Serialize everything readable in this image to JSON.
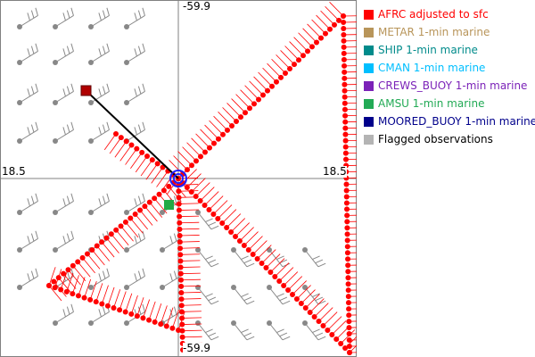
{
  "map": {
    "lat_top_label": "-59.9",
    "lat_bottom_label": "-59.9",
    "lon_left_label": "18.5",
    "lon_right_label": "18.5",
    "colors": {
      "afrc": "#ff0000",
      "barb": "#888888",
      "track_line": "#000000",
      "metar_marker": "#b00000",
      "amsu_marker": "#22aa44",
      "center_ring": "#2020ff"
    }
  },
  "legend": {
    "items": [
      {
        "label": "AFRC adjusted to sfc",
        "color": "#ff0000"
      },
      {
        "label": "METAR 1-min marine",
        "color": "#b8955a"
      },
      {
        "label": "SHIP 1-min marine",
        "color": "#008b8b"
      },
      {
        "label": "CMAN 1-min marine",
        "color": "#00bfff"
      },
      {
        "label": "CREWS_BUOY 1-min marine",
        "color": "#7b22b8"
      },
      {
        "label": "AMSU 1-min marine",
        "color": "#22aa55"
      },
      {
        "label": "MOORED_BUOY 1-min marine",
        "color": "#00008b"
      },
      {
        "label": "Flagged observations",
        "color": "#b4b4b4"
      }
    ]
  }
}
